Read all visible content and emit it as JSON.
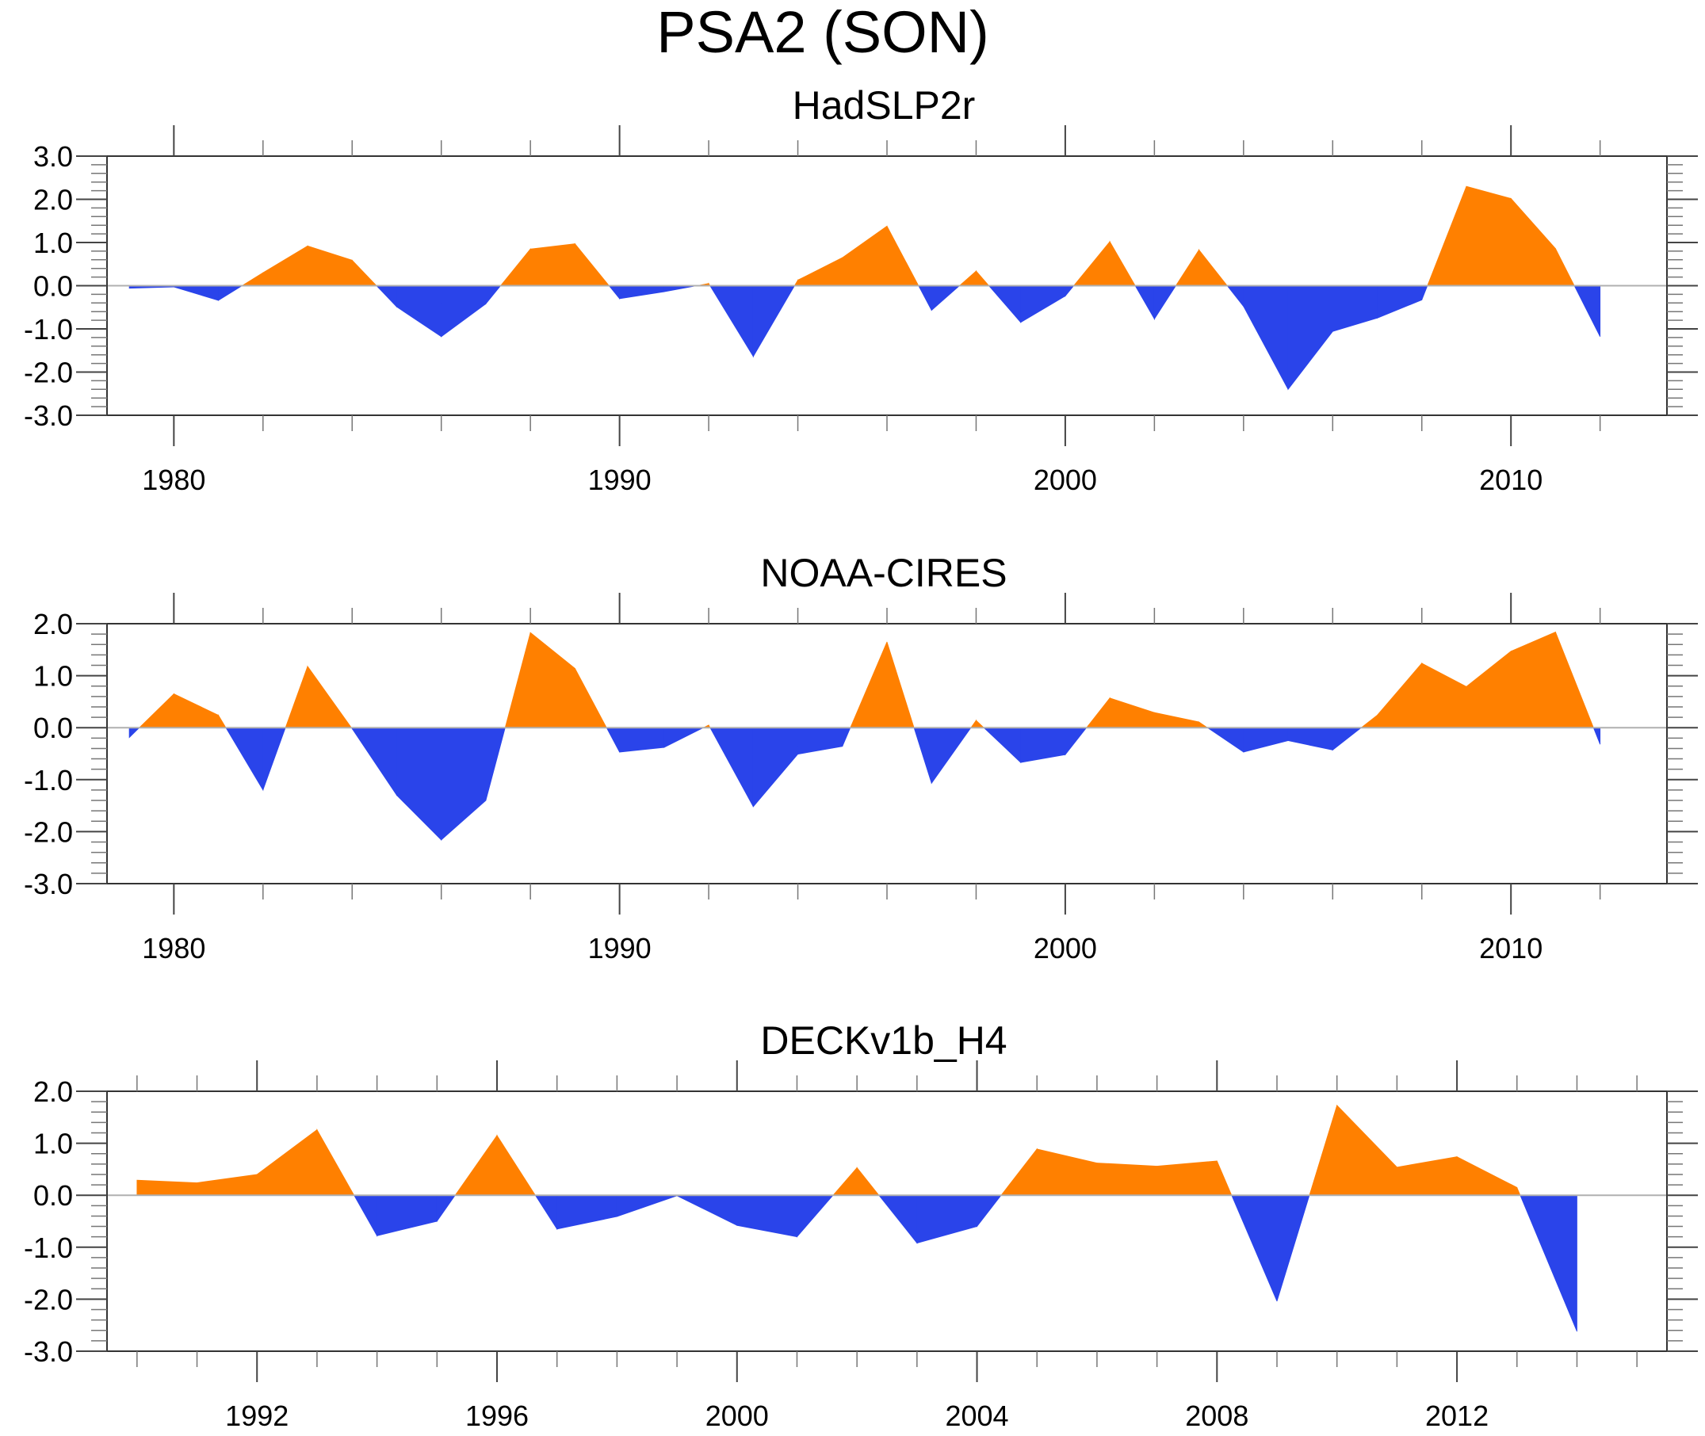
{
  "chart_data": {
    "type": "area",
    "title": "PSA2 (SON)",
    "fill_colors": {
      "positive": "#ff8000",
      "negative": "#2a44ea"
    },
    "panels": [
      {
        "title": "HadSLP2r",
        "xlabel": "",
        "ylabel": "",
        "xlim": [
          1978.5,
          2013.5
        ],
        "ylim": [
          -3.0,
          3.0
        ],
        "x_major_ticks": [
          1980,
          1990,
          2000,
          2010
        ],
        "x_minor_step": 2,
        "y_major_ticks": [
          3.0,
          2.0,
          1.0,
          0.0,
          -1.0,
          -2.0,
          -3.0
        ],
        "y_tick_labels": [
          "3.0",
          "2.0",
          "1.0",
          "0.0",
          "-1.0",
          "-2.0",
          "-3.0"
        ],
        "y_minor_step": 0.2,
        "x": [
          1979,
          1980,
          1981,
          1982,
          1983,
          1984,
          1985,
          1986,
          1987,
          1988,
          1989,
          1990,
          1991,
          1992,
          1993,
          1994,
          1995,
          1996,
          1997,
          1998,
          1999,
          2000,
          2001,
          2002,
          2003,
          2004,
          2005,
          2006,
          2007,
          2008,
          2009,
          2010,
          2011,
          2012
        ],
        "values": [
          -0.06,
          -0.03,
          -0.34,
          0.3,
          0.92,
          0.59,
          -0.49,
          -1.18,
          -0.42,
          0.85,
          0.97,
          -0.3,
          -0.14,
          0.05,
          -1.64,
          0.13,
          0.65,
          1.38,
          -0.57,
          0.34,
          -0.85,
          -0.24,
          1.02,
          -0.77,
          0.83,
          -0.48,
          -2.4,
          -1.06,
          -0.75,
          -0.33,
          2.3,
          2.02,
          0.86,
          -1.18
        ]
      },
      {
        "title": "NOAA-CIRES",
        "xlabel": "",
        "ylabel": "",
        "xlim": [
          1978.5,
          2013.5
        ],
        "ylim": [
          -3.0,
          2.0
        ],
        "x_major_ticks": [
          1980,
          1990,
          2000,
          2010
        ],
        "x_minor_step": 2,
        "y_major_ticks": [
          2.0,
          1.0,
          0.0,
          -1.0,
          -2.0,
          -3.0
        ],
        "y_tick_labels": [
          "2.0",
          "1.0",
          "0.0",
          "-1.0",
          "-2.0",
          "-3.0"
        ],
        "y_minor_step": 0.2,
        "x": [
          1979,
          1980,
          1981,
          1982,
          1983,
          1984,
          1985,
          1986,
          1987,
          1988,
          1989,
          1990,
          1991,
          1992,
          1993,
          1994,
          1995,
          1996,
          1997,
          1998,
          1999,
          2000,
          2001,
          2002,
          2003,
          2004,
          2005,
          2006,
          2007,
          2008,
          2009,
          2010,
          2011,
          2012
        ],
        "values": [
          -0.19,
          0.65,
          0.24,
          -1.2,
          1.18,
          -0.02,
          -1.3,
          -2.16,
          -1.4,
          1.83,
          1.14,
          -0.47,
          -0.38,
          0.05,
          -1.52,
          -0.51,
          -0.36,
          1.65,
          -1.07,
          0.14,
          -0.67,
          -0.52,
          0.57,
          0.29,
          0.11,
          -0.47,
          -0.25,
          -0.43,
          0.24,
          1.24,
          0.79,
          1.47,
          1.84,
          -0.32
        ]
      },
      {
        "title": "DECKv1b_H4",
        "xlabel": "",
        "ylabel": "",
        "xlim": [
          1989.5,
          2015.5
        ],
        "ylim": [
          -3.0,
          2.0
        ],
        "x_major_ticks": [
          1992,
          1996,
          2000,
          2004,
          2008,
          2012
        ],
        "x_minor_step": 1,
        "y_major_ticks": [
          2.0,
          1.0,
          0.0,
          -1.0,
          -2.0,
          -3.0
        ],
        "y_tick_labels": [
          "2.0",
          "1.0",
          "0.0",
          "-1.0",
          "-2.0",
          "-3.0"
        ],
        "y_minor_step": 0.2,
        "x": [
          1990,
          1991,
          1992,
          1993,
          1994,
          1995,
          1996,
          1997,
          1998,
          1999,
          2000,
          2001,
          2002,
          2003,
          2004,
          2005,
          2006,
          2007,
          2008,
          2009,
          2010,
          2011,
          2012,
          2013,
          2014
        ],
        "values": [
          0.29,
          0.24,
          0.4,
          1.26,
          -0.78,
          -0.5,
          1.15,
          -0.65,
          -0.41,
          -0.01,
          -0.58,
          -0.8,
          0.53,
          -0.92,
          -0.6,
          0.89,
          0.62,
          0.56,
          0.66,
          -2.04,
          1.73,
          0.54,
          0.74,
          0.15,
          -2.62
        ]
      }
    ]
  }
}
